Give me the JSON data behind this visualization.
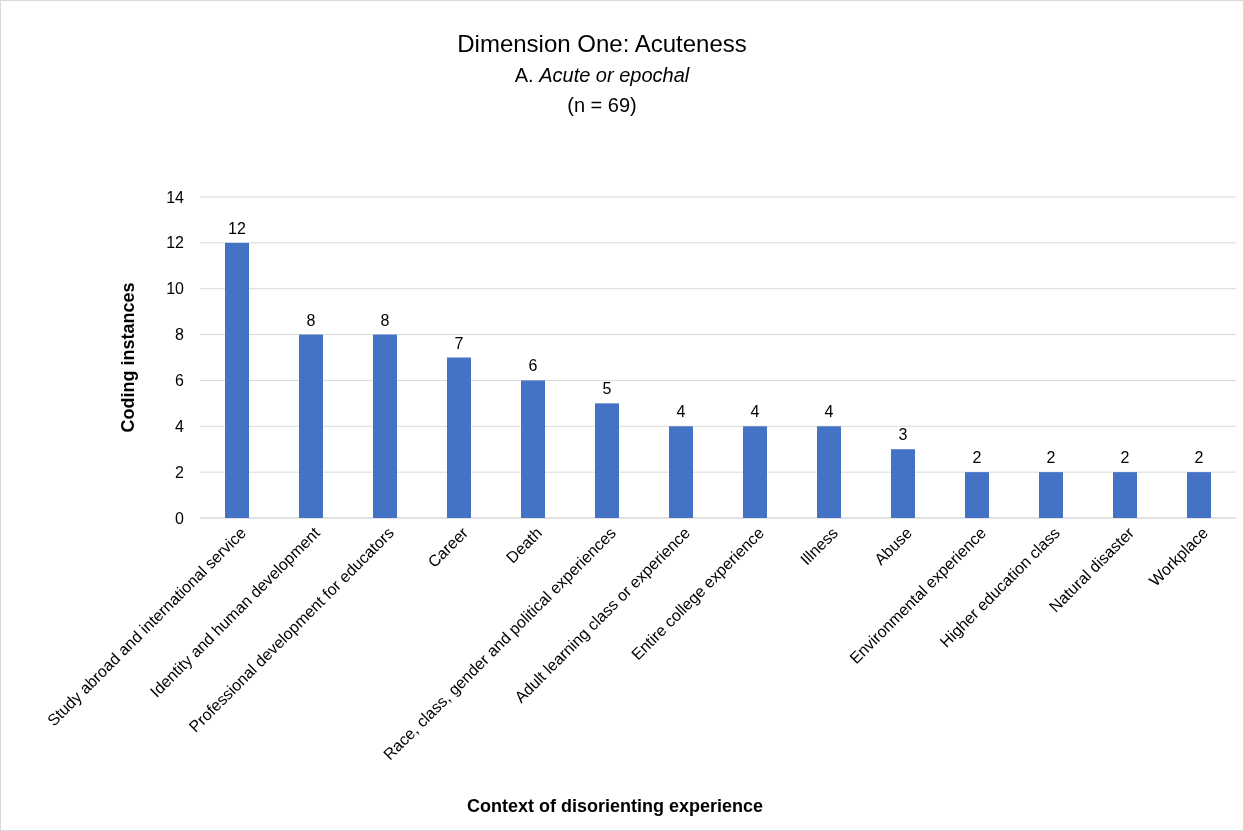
{
  "chart_data": {
    "type": "bar",
    "title": "Dimension One: Acuteness",
    "subtitle": "A. Acute or epochal",
    "annotations": [
      "(n = 69)"
    ],
    "xlabel": "Context of disorienting experience",
    "ylabel": "Coding instances",
    "categories": [
      "Study abroad and international service",
      "Identity and human development",
      "Professional development for educators",
      "Career",
      "Death",
      "Race, class, gender and political experiences",
      "Adult learning class or experience",
      "Entire college experience",
      "Illness",
      "Abuse",
      "Environmental experience",
      "Higher education class",
      "Natural disaster",
      "Workplace"
    ],
    "values": [
      12,
      8,
      8,
      7,
      6,
      5,
      4,
      4,
      4,
      3,
      2,
      2,
      2,
      2
    ],
    "color": "#4472c4",
    "ylim": [
      0,
      14
    ],
    "yticks": [
      0,
      2,
      4,
      6,
      8,
      10,
      12,
      14
    ],
    "grid": "y",
    "data_labels": true
  }
}
